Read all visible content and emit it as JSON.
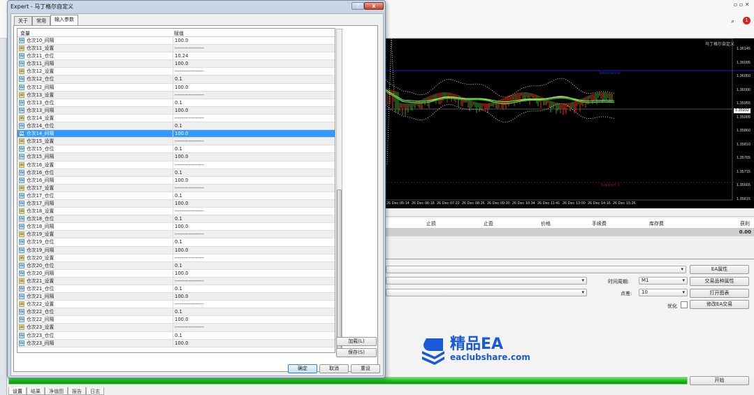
{
  "dialog": {
    "title": "Expert - 马丁格尔自定义",
    "help": "?",
    "close": "x",
    "tabs": [
      {
        "label": "关于"
      },
      {
        "label": "常用"
      },
      {
        "label": "输入参数"
      }
    ],
    "columns": {
      "variable": "变量",
      "value": "赋值"
    },
    "rows": [
      {
        "name": "仓次10_间隔",
        "value": "100.0",
        "type": "num"
      },
      {
        "name": "仓次11_设置",
        "value": "-----------------",
        "type": "str"
      },
      {
        "name": "仓次11_仓位",
        "value": "10.24",
        "type": "num"
      },
      {
        "name": "仓次11_间隔",
        "value": "100.0",
        "type": "num"
      },
      {
        "name": "仓次12_设置",
        "value": "-----------------",
        "type": "str"
      },
      {
        "name": "仓次12_仓位",
        "value": "0.1",
        "type": "num"
      },
      {
        "name": "仓次12_间隔",
        "value": "100.0",
        "type": "num"
      },
      {
        "name": "仓次13_设置",
        "value": "-----------------",
        "type": "str"
      },
      {
        "name": "仓次13_仓位",
        "value": "0.1",
        "type": "num"
      },
      {
        "name": "仓次13_间隔",
        "value": "100.0",
        "type": "num"
      },
      {
        "name": "仓次14_设置",
        "value": "-----------------",
        "type": "str"
      },
      {
        "name": "仓次14_仓位",
        "value": "0.1",
        "type": "num"
      },
      {
        "name": "仓次14_间隔",
        "value": "100.0",
        "type": "num",
        "selected": true
      },
      {
        "name": "仓次15_设置",
        "value": "-----------------",
        "type": "str"
      },
      {
        "name": "仓次15_仓位",
        "value": "0.1",
        "type": "num"
      },
      {
        "name": "仓次15_间隔",
        "value": "100.0",
        "type": "num"
      },
      {
        "name": "仓次16_设置",
        "value": "-----------------",
        "type": "str"
      },
      {
        "name": "仓次16_仓位",
        "value": "0.1",
        "type": "num"
      },
      {
        "name": "仓次16_间隔",
        "value": "100.0",
        "type": "num"
      },
      {
        "name": "仓次17_设置",
        "value": "-----------------",
        "type": "str"
      },
      {
        "name": "仓次17_仓位",
        "value": "0.1",
        "type": "num"
      },
      {
        "name": "仓次17_间隔",
        "value": "100.0",
        "type": "num"
      },
      {
        "name": "仓次18_设置",
        "value": "-----------------",
        "type": "str"
      },
      {
        "name": "仓次18_仓位",
        "value": "0.1",
        "type": "num"
      },
      {
        "name": "仓次18_间隔",
        "value": "100.0",
        "type": "num"
      },
      {
        "name": "仓次19_设置",
        "value": "-----------------",
        "type": "str"
      },
      {
        "name": "仓次19_仓位",
        "value": "0.1",
        "type": "num"
      },
      {
        "name": "仓次19_间隔",
        "value": "100.0",
        "type": "num"
      },
      {
        "name": "仓次20_设置",
        "value": "-----------------",
        "type": "str"
      },
      {
        "name": "仓次20_仓位",
        "value": "0.1",
        "type": "num"
      },
      {
        "name": "仓次20_间隔",
        "value": "100.0",
        "type": "num"
      },
      {
        "name": "仓次21_设置",
        "value": "-----------------",
        "type": "str"
      },
      {
        "name": "仓次21_仓位",
        "value": "0.1",
        "type": "num"
      },
      {
        "name": "仓次21_间隔",
        "value": "100.0",
        "type": "num"
      },
      {
        "name": "仓次22_设置",
        "value": "-----------------",
        "type": "str"
      },
      {
        "name": "仓次22_仓位",
        "value": "0.1",
        "type": "num"
      },
      {
        "name": "仓次22_间隔",
        "value": "100.0",
        "type": "num"
      },
      {
        "name": "仓次23_设置",
        "value": "-----------------",
        "type": "str"
      },
      {
        "name": "仓次23_仓位",
        "value": "0.1",
        "type": "num"
      },
      {
        "name": "仓次23_间隔",
        "value": "100.0",
        "type": "num"
      }
    ],
    "buttons": {
      "load": "加载(L)",
      "save": "保存(S)",
      "ok": "确定",
      "cancel": "取消",
      "reset": "重设"
    }
  },
  "chart": {
    "ea_label": "马丁格尔自定义",
    "prices": [
      "1.36145",
      "1.36095",
      "1.36050",
      "1.36000",
      "1.35955",
      "1.35905",
      "1.35860",
      "1.35810",
      "1.35765",
      "1.35715",
      "1.35665",
      "1.35615"
    ],
    "current_price": "1.35932",
    "times": [
      "26 Dec 05:14",
      "26 Dec 06:18",
      "26 Dec 07:22",
      "26 Dec 08:26",
      "26 Dec 09:30",
      "26 Dec 10:34",
      "26 Dec 11:41",
      "26 Dec 13:00",
      "26 Dec 14:16",
      "26 Dec 15:26"
    ],
    "resistance_label": "Resistance",
    "support_label": "Support 1"
  },
  "trades": {
    "columns": [
      "止损",
      "止盈",
      "价格",
      "手续费",
      "库存费",
      "获利"
    ],
    "total": "0.00"
  },
  "tester": {
    "period_label": "时间周期:",
    "period_value": "M1",
    "spread_label": "点差:",
    "spread_value": "10",
    "optimize_label": "优化",
    "buttons": {
      "ea_props": "EA属性",
      "symbol_props": "交易品种属性",
      "open_chart": "打开图表",
      "modify_ea": "修改EA交易",
      "start": "开始"
    },
    "tabs": [
      "设置",
      "结果",
      "净值图",
      "报告",
      "日志"
    ]
  },
  "watermark": {
    "title": "精品EA",
    "url": "eaclubshare.com",
    "color": "#1a5ad8"
  }
}
